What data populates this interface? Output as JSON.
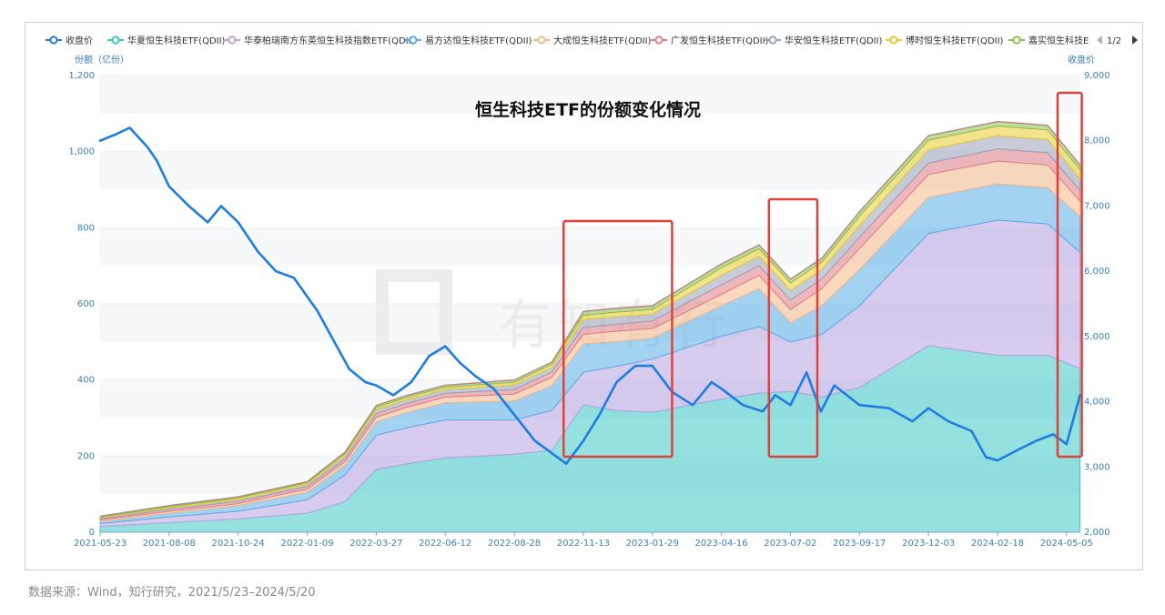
{
  "chart_data": {
    "type": "area",
    "title": "恒生科技ETF的份额变化情况",
    "y_left_label": "份额（亿份）",
    "y_right_label": "收盘价",
    "y_left_range": [
      0,
      1200
    ],
    "y_right_range": [
      2000,
      9000
    ],
    "y_left_ticks": [
      "0",
      "200",
      "400",
      "600",
      "800",
      "1,000",
      "1,200"
    ],
    "y_right_ticks": [
      "2,000",
      "3,000",
      "4,000",
      "5,000",
      "6,000",
      "7,000",
      "8,000",
      "9,000"
    ],
    "x_ticks": [
      "2021-05-23",
      "2021-08-08",
      "2021-10-24",
      "2022-01-09",
      "2022-03-27",
      "2022-06-12",
      "2022-08-28",
      "2022-11-13",
      "2023-01-29",
      "2023-04-16",
      "2023-07-02",
      "2023-09-17",
      "2023-12-03",
      "2024-02-18",
      "2024-05-05"
    ],
    "grid": "horizontal bands",
    "legend_position": "top",
    "legend_page": "1/2",
    "legend": [
      {
        "name": "收盘价",
        "color": "#1f7de0",
        "marker": "line"
      },
      {
        "name": "华夏恒生科技ETF(QDII)",
        "color": "#3cc8c4",
        "marker": "line"
      },
      {
        "name": "华泰柏瑞南方东英恒生科技指数ETF(QDII)",
        "color": "#b7a3e0",
        "marker": "line"
      },
      {
        "name": "易方达恒生科技ETF(QDII)",
        "color": "#5aaee8",
        "marker": "line"
      },
      {
        "name": "大成恒生科技ETF(QDII)",
        "color": "#f5b98a",
        "marker": "line"
      },
      {
        "name": "广发恒生科技ETF(QDII)",
        "color": "#e07d86",
        "marker": "line"
      },
      {
        "name": "华安恒生科技ETF(QDII)",
        "color": "#9aa3b8",
        "marker": "line"
      },
      {
        "name": "博时恒生科技ETF(QDII)",
        "color": "#e8cc2e",
        "marker": "line"
      },
      {
        "name": "嘉实恒生科技ET",
        "color": "#8fbf4a",
        "marker": "line"
      }
    ],
    "dates": [
      "2021-05-23",
      "2021-08-08",
      "2021-10-24",
      "2022-01-09",
      "2022-02-20",
      "2022-03-27",
      "2022-05-01",
      "2022-06-12",
      "2022-08-28",
      "2022-10-09",
      "2022-11-13",
      "2022-12-18",
      "2023-01-29",
      "2023-04-16",
      "2023-05-28",
      "2023-07-02",
      "2023-08-06",
      "2023-09-17",
      "2023-12-03",
      "2024-02-18",
      "2024-04-14",
      "2024-05-20"
    ],
    "series": [
      {
        "name": "华夏恒生科技ETF(QDII)",
        "values": [
          15,
          25,
          35,
          50,
          80,
          165,
          180,
          195,
          205,
          215,
          335,
          320,
          315,
          350,
          365,
          370,
          355,
          380,
          490,
          465,
          465,
          430
        ]
      },
      {
        "name": "华泰柏瑞南方东英恒生科技指数ETF(QDII)",
        "values": [
          8,
          15,
          20,
          35,
          70,
          90,
          95,
          100,
          90,
          105,
          85,
          115,
          140,
          165,
          175,
          130,
          165,
          215,
          295,
          355,
          345,
          305
        ]
      },
      {
        "name": "易方达恒生科技ETF(QDII)",
        "values": [
          5,
          10,
          15,
          20,
          25,
          35,
          40,
          45,
          50,
          65,
          75,
          65,
          55,
          80,
          100,
          50,
          75,
          95,
          95,
          95,
          95,
          95
        ]
      },
      {
        "name": "大成恒生科技ETF(QDII)",
        "values": [
          4,
          5,
          5,
          8,
          10,
          12,
          14,
          15,
          18,
          22,
          25,
          28,
          25,
          30,
          35,
          35,
          45,
          55,
          60,
          60,
          60,
          40
        ]
      },
      {
        "name": "广发恒生科技ETF(QDII)",
        "values": [
          3,
          5,
          6,
          7,
          8,
          10,
          10,
          10,
          12,
          14,
          18,
          18,
          20,
          25,
          25,
          25,
          25,
          30,
          30,
          32,
          32,
          28
        ]
      },
      {
        "name": "华安恒生科技ETF(QDII)",
        "values": [
          3,
          4,
          5,
          6,
          8,
          10,
          10,
          10,
          12,
          12,
          20,
          20,
          18,
          25,
          25,
          25,
          25,
          30,
          35,
          35,
          35,
          30
        ]
      },
      {
        "name": "博时恒生科技ETF(QDII)",
        "values": [
          2,
          3,
          4,
          4,
          5,
          6,
          6,
          6,
          7,
          8,
          12,
          12,
          12,
          20,
          20,
          20,
          20,
          25,
          25,
          25,
          25,
          25
        ]
      },
      {
        "name": "嘉实恒生科技ET",
        "values": [
          2,
          3,
          3,
          3,
          4,
          5,
          5,
          5,
          6,
          6,
          10,
          10,
          10,
          10,
          10,
          10,
          10,
          12,
          12,
          12,
          12,
          12
        ]
      }
    ],
    "close_price": {
      "name": "收盘价",
      "dates": [
        "2021-05-23",
        "2021-06-10",
        "2021-06-25",
        "2021-07-15",
        "2021-07-25",
        "2021-08-08",
        "2021-08-30",
        "2021-09-20",
        "2021-10-05",
        "2021-10-24",
        "2021-11-15",
        "2021-12-05",
        "2021-12-25",
        "2022-01-20",
        "2022-02-05",
        "2022-02-25",
        "2022-03-15",
        "2022-03-27",
        "2022-04-15",
        "2022-05-05",
        "2022-05-25",
        "2022-06-12",
        "2022-06-28",
        "2022-07-15",
        "2022-08-05",
        "2022-08-28",
        "2022-09-20",
        "2022-10-10",
        "2022-10-25",
        "2022-11-13",
        "2022-12-01",
        "2022-12-20",
        "2023-01-10",
        "2023-01-29",
        "2023-02-20",
        "2023-03-15",
        "2023-04-05",
        "2023-04-16",
        "2023-05-10",
        "2023-06-01",
        "2023-06-15",
        "2023-07-02",
        "2023-07-20",
        "2023-08-05",
        "2023-08-20",
        "2023-09-17",
        "2023-10-20",
        "2023-11-15",
        "2023-12-03",
        "2023-12-25",
        "2024-01-20",
        "2024-02-05",
        "2024-02-18",
        "2024-03-10",
        "2024-04-01",
        "2024-04-20",
        "2024-05-05",
        "2024-05-20"
      ],
      "values": [
        8000,
        8100,
        8200,
        7900,
        7700,
        7300,
        7000,
        6750,
        7000,
        6750,
        6300,
        6000,
        5900,
        5400,
        5000,
        4500,
        4300,
        4250,
        4100,
        4300,
        4700,
        4850,
        4600,
        4400,
        4200,
        3800,
        3400,
        3200,
        3050,
        3400,
        3800,
        4300,
        4550,
        4550,
        4150,
        3950,
        4300,
        4200,
        3950,
        3850,
        4100,
        3950,
        4450,
        3850,
        4250,
        3950,
        3900,
        3700,
        3900,
        3700,
        3550,
        3150,
        3100,
        3250,
        3400,
        3500,
        3350,
        4100
      ]
    },
    "highlight_periods": [
      {
        "start": "2022-10-22",
        "end": "2023-02-20"
      },
      {
        "start": "2023-06-08",
        "end": "2023-08-01"
      },
      {
        "start": "2024-04-25",
        "end": "2024-05-22"
      }
    ]
  },
  "watermark_text": "有知有行",
  "source_text": "数据来源：Wind，知行研究，2021/5/23–2024/5/20"
}
